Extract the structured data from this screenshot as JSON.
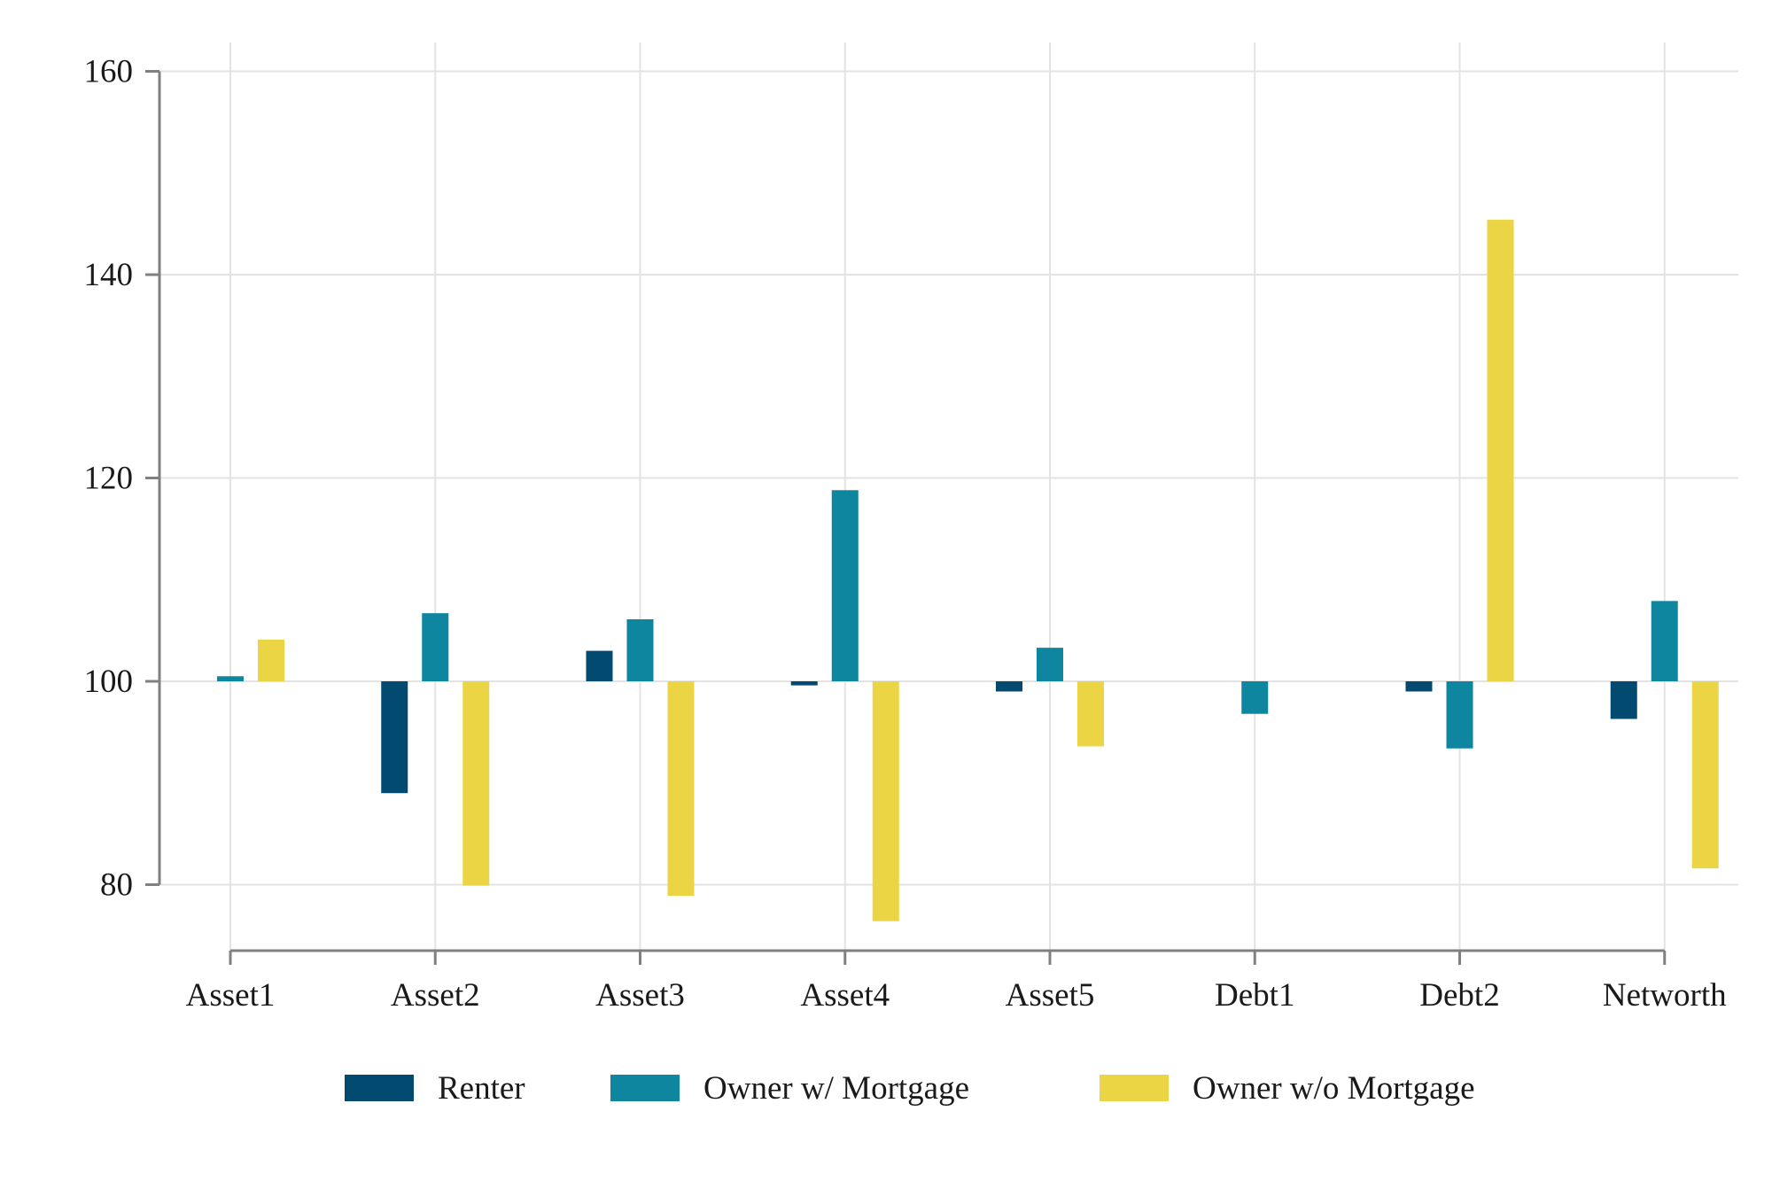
{
  "chart_data": {
    "type": "bar",
    "title": "",
    "xlabel": "",
    "ylabel": "",
    "baseline": 100,
    "ylim": [
      73.5,
      164
    ],
    "yticks": [
      80,
      100,
      120,
      140,
      160
    ],
    "grid": true,
    "legend_position": "bottom",
    "categories": [
      "Asset1",
      "Asset2",
      "Asset3",
      "Asset4",
      "Asset5",
      "Debt1",
      "Debt2",
      "Networth"
    ],
    "series": [
      {
        "name": "Renter",
        "color": "#024a70",
        "values": [
          100,
          89.0,
          103.0,
          99.6,
          99.0,
          100,
          99.0,
          96.3
        ]
      },
      {
        "name": "Owner w/ Mortgage",
        "color": "#0e86a0",
        "values": [
          100.5,
          106.7,
          106.1,
          118.8,
          103.3,
          96.8,
          93.4,
          107.9
        ]
      },
      {
        "name": "Owner w/o Mortgage",
        "color": "#ecd544",
        "values": [
          104.1,
          79.9,
          78.9,
          76.4,
          93.6,
          100,
          145.4,
          81.6
        ]
      }
    ]
  }
}
